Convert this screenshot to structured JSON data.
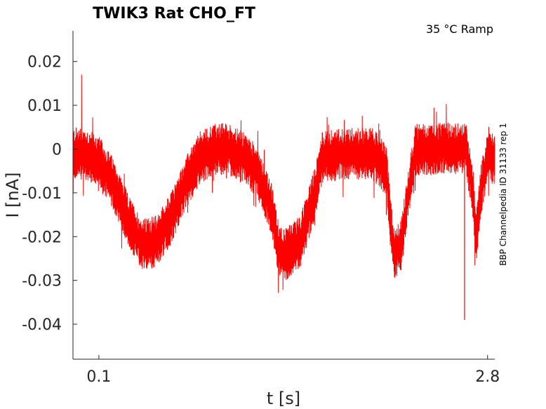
{
  "chart_data": {
    "type": "line",
    "title": "TWIK3  Rat  CHO_FT",
    "annotation_top_right": "35 °C  Ramp",
    "annotation_side": "BBP Channelpedia ID 31133 rep 1",
    "xlabel": "t [s]",
    "ylabel": "I [nA]",
    "xlim": [
      -0.08,
      2.85
    ],
    "ylim": [
      -0.048,
      0.027
    ],
    "x_ticks": [
      0.1,
      2.8
    ],
    "x_tick_labels": [
      "0.1",
      "2.8"
    ],
    "y_ticks": [
      0.02,
      0.01,
      0,
      -0.01,
      -0.02,
      -0.03,
      -0.04
    ],
    "y_tick_labels": [
      "0.02",
      "0.01",
      "0",
      "-0.01",
      "-0.02",
      "-0.03",
      "-0.04"
    ],
    "grid": false,
    "series": [
      {
        "color": "#ff0000",
        "envelope_x": [
          -0.08,
          0.0,
          0.1,
          0.2,
          0.3,
          0.4,
          0.5,
          0.6,
          0.7,
          0.8,
          0.9,
          1.0,
          1.1,
          1.2,
          1.3,
          1.35,
          1.4,
          1.5,
          1.6,
          1.65,
          1.8,
          2.0,
          2.1,
          2.12,
          2.15,
          2.2,
          2.25,
          2.3,
          2.5,
          2.65,
          2.7,
          2.72,
          2.75,
          2.8,
          2.85
        ],
        "envelope_center": [
          -0.001,
          -0.001,
          -0.003,
          -0.008,
          -0.016,
          -0.022,
          -0.021,
          -0.016,
          -0.008,
          -0.002,
          0.0,
          0.0,
          -0.002,
          -0.005,
          -0.014,
          -0.023,
          -0.024,
          -0.021,
          -0.01,
          -0.002,
          -0.001,
          -0.001,
          -0.005,
          -0.015,
          -0.024,
          -0.022,
          -0.01,
          0.0,
          0.0,
          0.0,
          -0.01,
          -0.021,
          -0.01,
          -0.002,
          -0.002
        ],
        "noise_amplitude": 0.005,
        "min_point": [
          2.64,
          -0.039
        ],
        "max_point": [
          -0.02,
          0.017
        ]
      }
    ]
  }
}
